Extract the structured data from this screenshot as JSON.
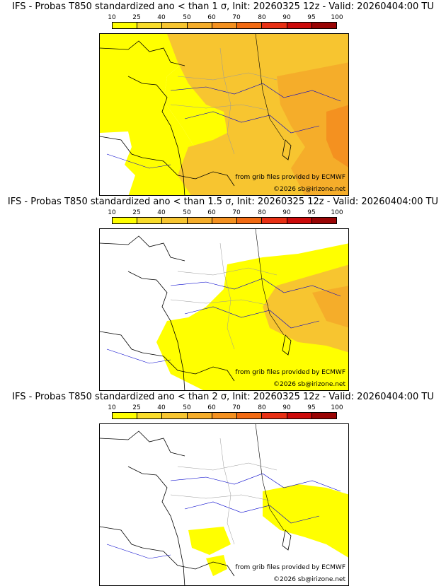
{
  "colorbar": {
    "labels": [
      "10",
      "25",
      "40",
      "50",
      "60",
      "70",
      "80",
      "90",
      "95",
      "100"
    ],
    "colors": [
      "#ffff00",
      "#f9dc2a",
      "#f7c530",
      "#f5ad2a",
      "#f49120",
      "#f26a12",
      "#e83014",
      "#cc0a0a",
      "#990404",
      "#5c0202"
    ]
  },
  "credits": {
    "grib": "from grib files provided by ECMWF",
    "copyright": "©2026 sb@irizone.net"
  },
  "panels": [
    {
      "title": "IFS - Probas T850  standardized ano < than 1 σ, Init: 20260325 12z - Valid: 20260404:00 TU",
      "threshold_sigma": "1"
    },
    {
      "title": "IFS - Probas T850  standardized ano < than 1.5 σ, Init: 20260325 12z - Valid: 20260404:00 TU",
      "threshold_sigma": "1.5"
    },
    {
      "title": "IFS - Probas T850  standardized ano < than 2 σ, Init: 20260325 12z - Valid: 20260404:00 TU",
      "threshold_sigma": "2"
    }
  ]
}
